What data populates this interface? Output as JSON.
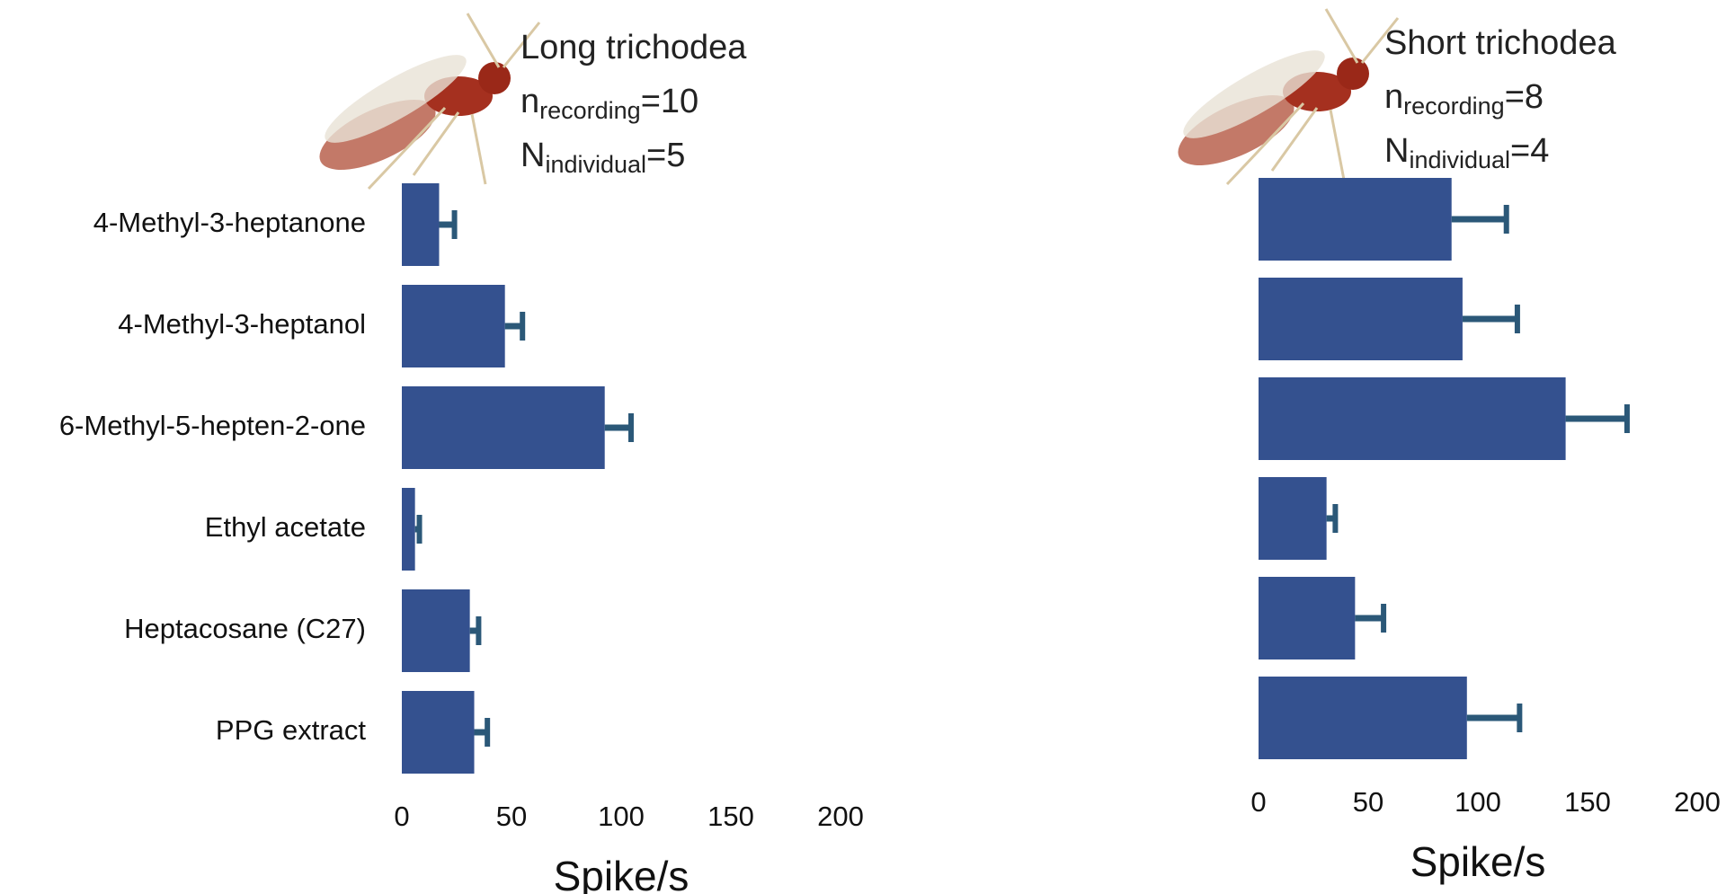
{
  "chart_data": [
    {
      "type": "bar",
      "orientation": "horizontal",
      "title": "Long trichodea",
      "annotations": [
        {
          "symbol": "n",
          "subscript": "recording",
          "text": "=10"
        },
        {
          "symbol": "N",
          "subscript": "individual",
          "text": "=5"
        }
      ],
      "categories": [
        "4-Methyl-3-heptanone",
        "4-Methyl-3-heptanol",
        "6-Methyl-5-hepten-2-one",
        "Ethyl acetate",
        "Heptacosane (C27)",
        "PPG extract"
      ],
      "values": [
        17,
        47,
        92.5,
        6,
        31,
        33
      ],
      "errors": [
        7,
        8,
        12,
        2,
        4,
        6
      ],
      "color": "#34518f",
      "error_color": "#2b5878",
      "xlim": [
        0,
        200
      ],
      "xticks": [
        0,
        50,
        100,
        150,
        200
      ],
      "xlabel": "Spike/s"
    },
    {
      "type": "bar",
      "orientation": "horizontal",
      "title": "Short trichodea",
      "annotations": [
        {
          "symbol": "n",
          "subscript": "recording",
          "text": "=8"
        },
        {
          "symbol": "N",
          "subscript": "individual",
          "text": "=4"
        }
      ],
      "categories": [
        null,
        null,
        null,
        null,
        null,
        null
      ],
      "values": [
        88,
        93,
        140,
        31,
        44,
        95
      ],
      "errors": [
        25,
        25,
        28,
        4,
        13,
        24
      ],
      "color": "#34518f",
      "error_color": "#2b5878",
      "xlim": [
        0,
        200
      ],
      "xticks": [
        0,
        50,
        100,
        150,
        200
      ],
      "xlabel": "Spike/s"
    }
  ]
}
